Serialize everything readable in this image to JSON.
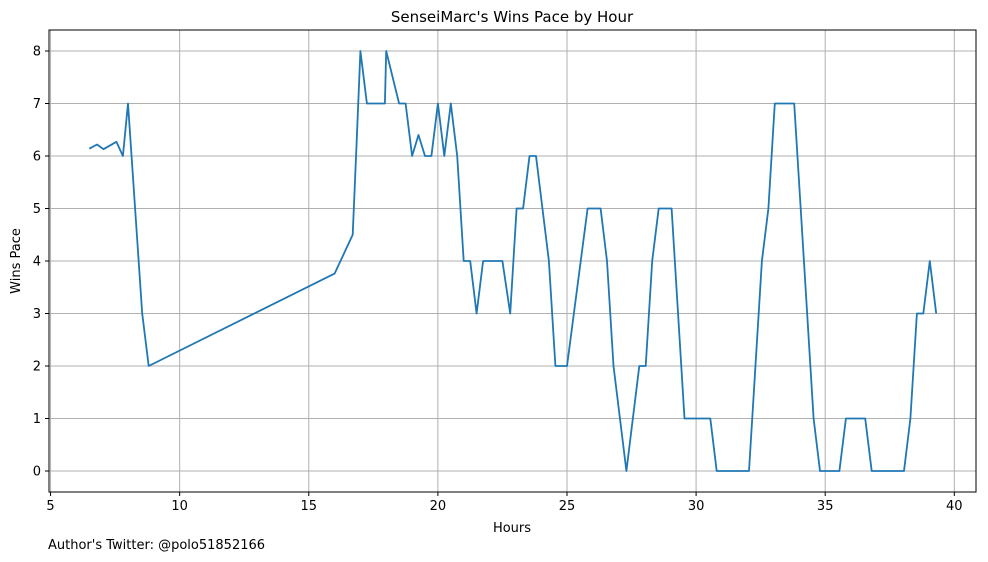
{
  "chart_data": {
    "type": "line",
    "title": "SenseiMarc's Wins Pace by Hour",
    "xlabel": "Hours",
    "ylabel": "Wins Pace",
    "xlim": [
      4.94,
      40.84
    ],
    "ylim": [
      -0.4,
      8.4
    ],
    "xticks": [
      5,
      10,
      15,
      20,
      25,
      30,
      35,
      40
    ],
    "yticks": [
      0,
      1,
      2,
      3,
      4,
      5,
      6,
      7,
      8
    ],
    "grid": true,
    "series": [
      {
        "color": "#1f77b4",
        "points": [
          [
            6.5,
            6.14
          ],
          [
            6.8,
            6.22
          ],
          [
            7.05,
            6.13
          ],
          [
            7.55,
            6.27
          ],
          [
            7.8,
            6.0
          ],
          [
            8.0,
            7.0
          ],
          [
            8.55,
            3.0
          ],
          [
            8.8,
            2.0
          ],
          [
            16.0,
            3.76
          ],
          [
            16.7,
            4.5
          ],
          [
            16.85,
            6.2
          ],
          [
            17.0,
            8.0
          ],
          [
            17.25,
            7.0
          ],
          [
            17.95,
            7.0
          ],
          [
            18.0,
            8.0
          ],
          [
            18.5,
            7.0
          ],
          [
            18.75,
            7.0
          ],
          [
            19.0,
            6.0
          ],
          [
            19.25,
            6.4
          ],
          [
            19.5,
            6.0
          ],
          [
            19.75,
            6.0
          ],
          [
            20.0,
            7.0
          ],
          [
            20.25,
            6.0
          ],
          [
            20.5,
            7.0
          ],
          [
            20.75,
            6.0
          ],
          [
            21.0,
            4.0
          ],
          [
            21.25,
            4.0
          ],
          [
            21.5,
            3.0
          ],
          [
            21.75,
            4.0
          ],
          [
            22.5,
            4.0
          ],
          [
            22.8,
            3.0
          ],
          [
            23.05,
            5.0
          ],
          [
            23.3,
            5.0
          ],
          [
            23.55,
            6.0
          ],
          [
            23.8,
            6.0
          ],
          [
            24.3,
            4.0
          ],
          [
            24.55,
            2.0
          ],
          [
            25.0,
            2.0
          ],
          [
            25.8,
            5.0
          ],
          [
            26.3,
            5.0
          ],
          [
            26.55,
            4.0
          ],
          [
            26.8,
            2.0
          ],
          [
            27.3,
            0.0
          ],
          [
            27.8,
            2.0
          ],
          [
            28.05,
            2.0
          ],
          [
            28.3,
            4.0
          ],
          [
            28.55,
            5.0
          ],
          [
            29.05,
            5.0
          ],
          [
            29.55,
            1.0
          ],
          [
            30.55,
            1.0
          ],
          [
            30.8,
            0.0
          ],
          [
            32.05,
            0.0
          ],
          [
            32.55,
            4.0
          ],
          [
            32.8,
            5.0
          ],
          [
            33.05,
            7.0
          ],
          [
            33.8,
            7.0
          ],
          [
            34.05,
            5.0
          ],
          [
            34.55,
            1.0
          ],
          [
            34.8,
            0.0
          ],
          [
            35.55,
            0.0
          ],
          [
            35.8,
            1.0
          ],
          [
            36.55,
            1.0
          ],
          [
            36.8,
            0.0
          ],
          [
            38.05,
            0.0
          ],
          [
            38.3,
            1.0
          ],
          [
            38.55,
            3.0
          ],
          [
            38.8,
            3.0
          ],
          [
            39.05,
            4.0
          ],
          [
            39.3,
            3.0
          ]
        ]
      }
    ]
  },
  "footnote": "Author's Twitter: @polo51852166"
}
